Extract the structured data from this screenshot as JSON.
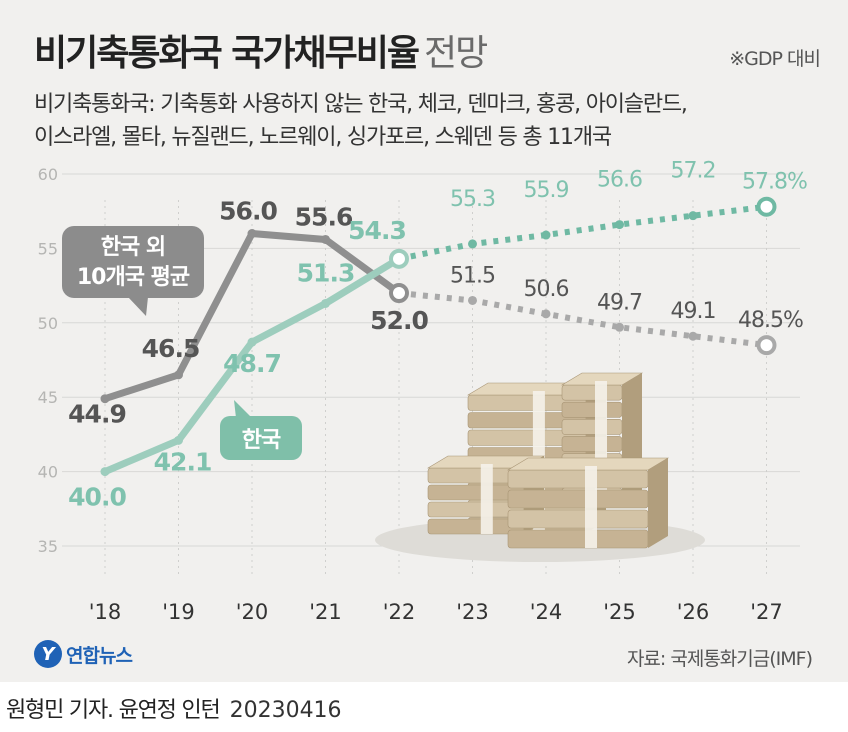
{
  "header": {
    "title_bold": "비기축통화국 국가채무비율",
    "title_light": "전망",
    "note": "※GDP 대비",
    "subtitle_line1": "비기축통화국: 기축통화 사용하지 않는 한국, 체코, 덴마크, 홍콩, 아이슬란드,",
    "subtitle_line2": "이스라엘, 몰타, 뉴질랜드, 노르웨이, 싱가포르, 스웨덴 등 총 11개국"
  },
  "colors": {
    "gray_series": "#8f8f8f",
    "gray_projected": "#a9a9a9",
    "teal_series": "#9dcdbd",
    "teal_projected": "#6fb9a3",
    "gray_label": "#555555",
    "teal_label": "#7fc2ae",
    "panel_bg": "#f1f0ee",
    "logo_blue": "#1f62b6"
  },
  "chart_data": {
    "type": "line",
    "x": [
      "'18",
      "'19",
      "'20",
      "'21",
      "'22",
      "'23",
      "'24",
      "'25",
      "'26",
      "'27"
    ],
    "yticks": [
      "60",
      "55",
      "50",
      "45",
      "40",
      "35"
    ],
    "ylim": [
      35,
      60
    ],
    "grid": true,
    "projection_from_index": 4,
    "series": [
      {
        "name": "한국 외 10개국 평균",
        "callout": [
          "한국 외",
          "10개국 평균"
        ],
        "values": [
          44.9,
          46.5,
          56.0,
          55.6,
          52.0,
          51.5,
          50.6,
          49.7,
          49.1,
          48.5
        ],
        "labels": [
          "44.9",
          "46.5",
          "56.0",
          "55.6",
          "52.0",
          "51.5",
          "50.6",
          "49.7",
          "49.1",
          "48.5%"
        ]
      },
      {
        "name": "한국",
        "callout": [
          "한국"
        ],
        "values": [
          40.0,
          42.1,
          48.7,
          51.3,
          54.3,
          55.3,
          55.9,
          56.6,
          57.2,
          57.8
        ],
        "labels": [
          "40.0",
          "42.1",
          "48.7",
          "51.3",
          "54.3",
          "55.3",
          "55.9",
          "56.6",
          "57.2",
          "57.8%"
        ]
      }
    ]
  },
  "footer": {
    "logo_mark": "Y",
    "logo_text": "연합뉴스",
    "source": "자료: 국제통화기금(IMF)"
  },
  "credit": {
    "authors": "원형민 기자. 윤연정 인턴",
    "date": "20230416"
  }
}
